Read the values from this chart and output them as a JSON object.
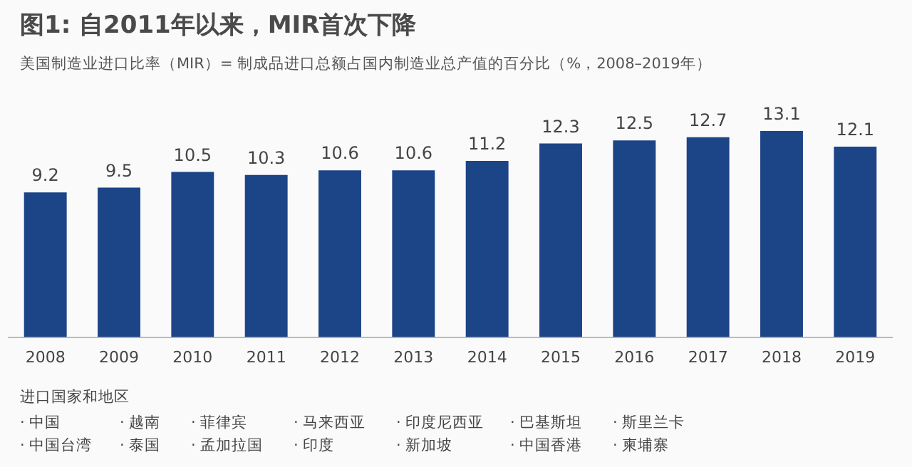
{
  "chart_data": {
    "type": "bar",
    "title": "图1: 自2011年以来，MIR首次下降",
    "subtitle": "美国制造业进口比率（MIR）= 制成品进口总额占国内制造业总产值的百分比（%，2008–2019年）",
    "categories": [
      "2008",
      "2009",
      "2010",
      "2011",
      "2012",
      "2013",
      "2014",
      "2015",
      "2016",
      "2017",
      "2018",
      "2019"
    ],
    "values": [
      9.2,
      9.5,
      10.5,
      10.3,
      10.6,
      10.6,
      11.2,
      12.3,
      12.5,
      12.7,
      13.1,
      12.1
    ],
    "color": "#1c4587",
    "data_labels": true,
    "grid": false,
    "legend": false,
    "tick_labels": "x",
    "annotations": [
      "进口国家和地区",
      "· 中国",
      "· 越南",
      "· 菲律宾",
      "· 马来西亚",
      "· 印度尼西亚",
      "· 巴基斯坦",
      "· 斯里兰卡",
      "· 中国台湾",
      "· 泰国",
      "· 孟加拉国",
      "· 印度",
      "· 新加坡",
      "· 中国香港",
      "· 柬埔寨"
    ]
  }
}
